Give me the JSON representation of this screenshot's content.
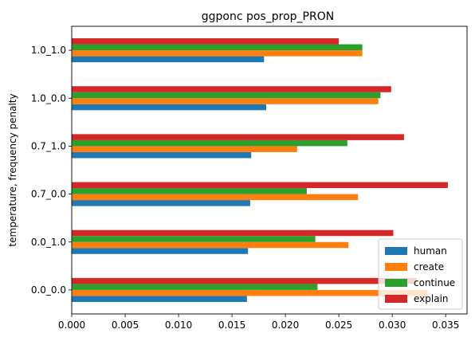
{
  "chart_data": {
    "type": "bar",
    "orientation": "horizontal",
    "title": "ggponc pos_prop_PRON",
    "xlabel": "",
    "ylabel": "temperature, frequency penalty",
    "categories": [
      "0.0_0.0",
      "0.0_1.0",
      "0.7_0.0",
      "0.7_1.0",
      "1.0_0.0",
      "1.0_1.0"
    ],
    "xlim": [
      0,
      0.037
    ],
    "xticks": [
      "0.000",
      "0.005",
      "0.010",
      "0.015",
      "0.020",
      "0.025",
      "0.030",
      "0.035"
    ],
    "grid": false,
    "legend_position": "lower-right",
    "series": [
      {
        "name": "human",
        "color": "#1f77b4",
        "values": [
          0.0164,
          0.0165,
          0.0167,
          0.0168,
          0.0182,
          0.018
        ]
      },
      {
        "name": "create",
        "color": "#ff7f0e",
        "values": [
          0.0333,
          0.0259,
          0.0268,
          0.0211,
          0.0287,
          0.0272
        ]
      },
      {
        "name": "continue",
        "color": "#2ca02c",
        "values": [
          0.023,
          0.0228,
          0.022,
          0.0258,
          0.0289,
          0.0272
        ]
      },
      {
        "name": "explain",
        "color": "#d62728",
        "values": [
          0.0323,
          0.0301,
          0.0352,
          0.0311,
          0.0299,
          0.025
        ]
      }
    ]
  }
}
